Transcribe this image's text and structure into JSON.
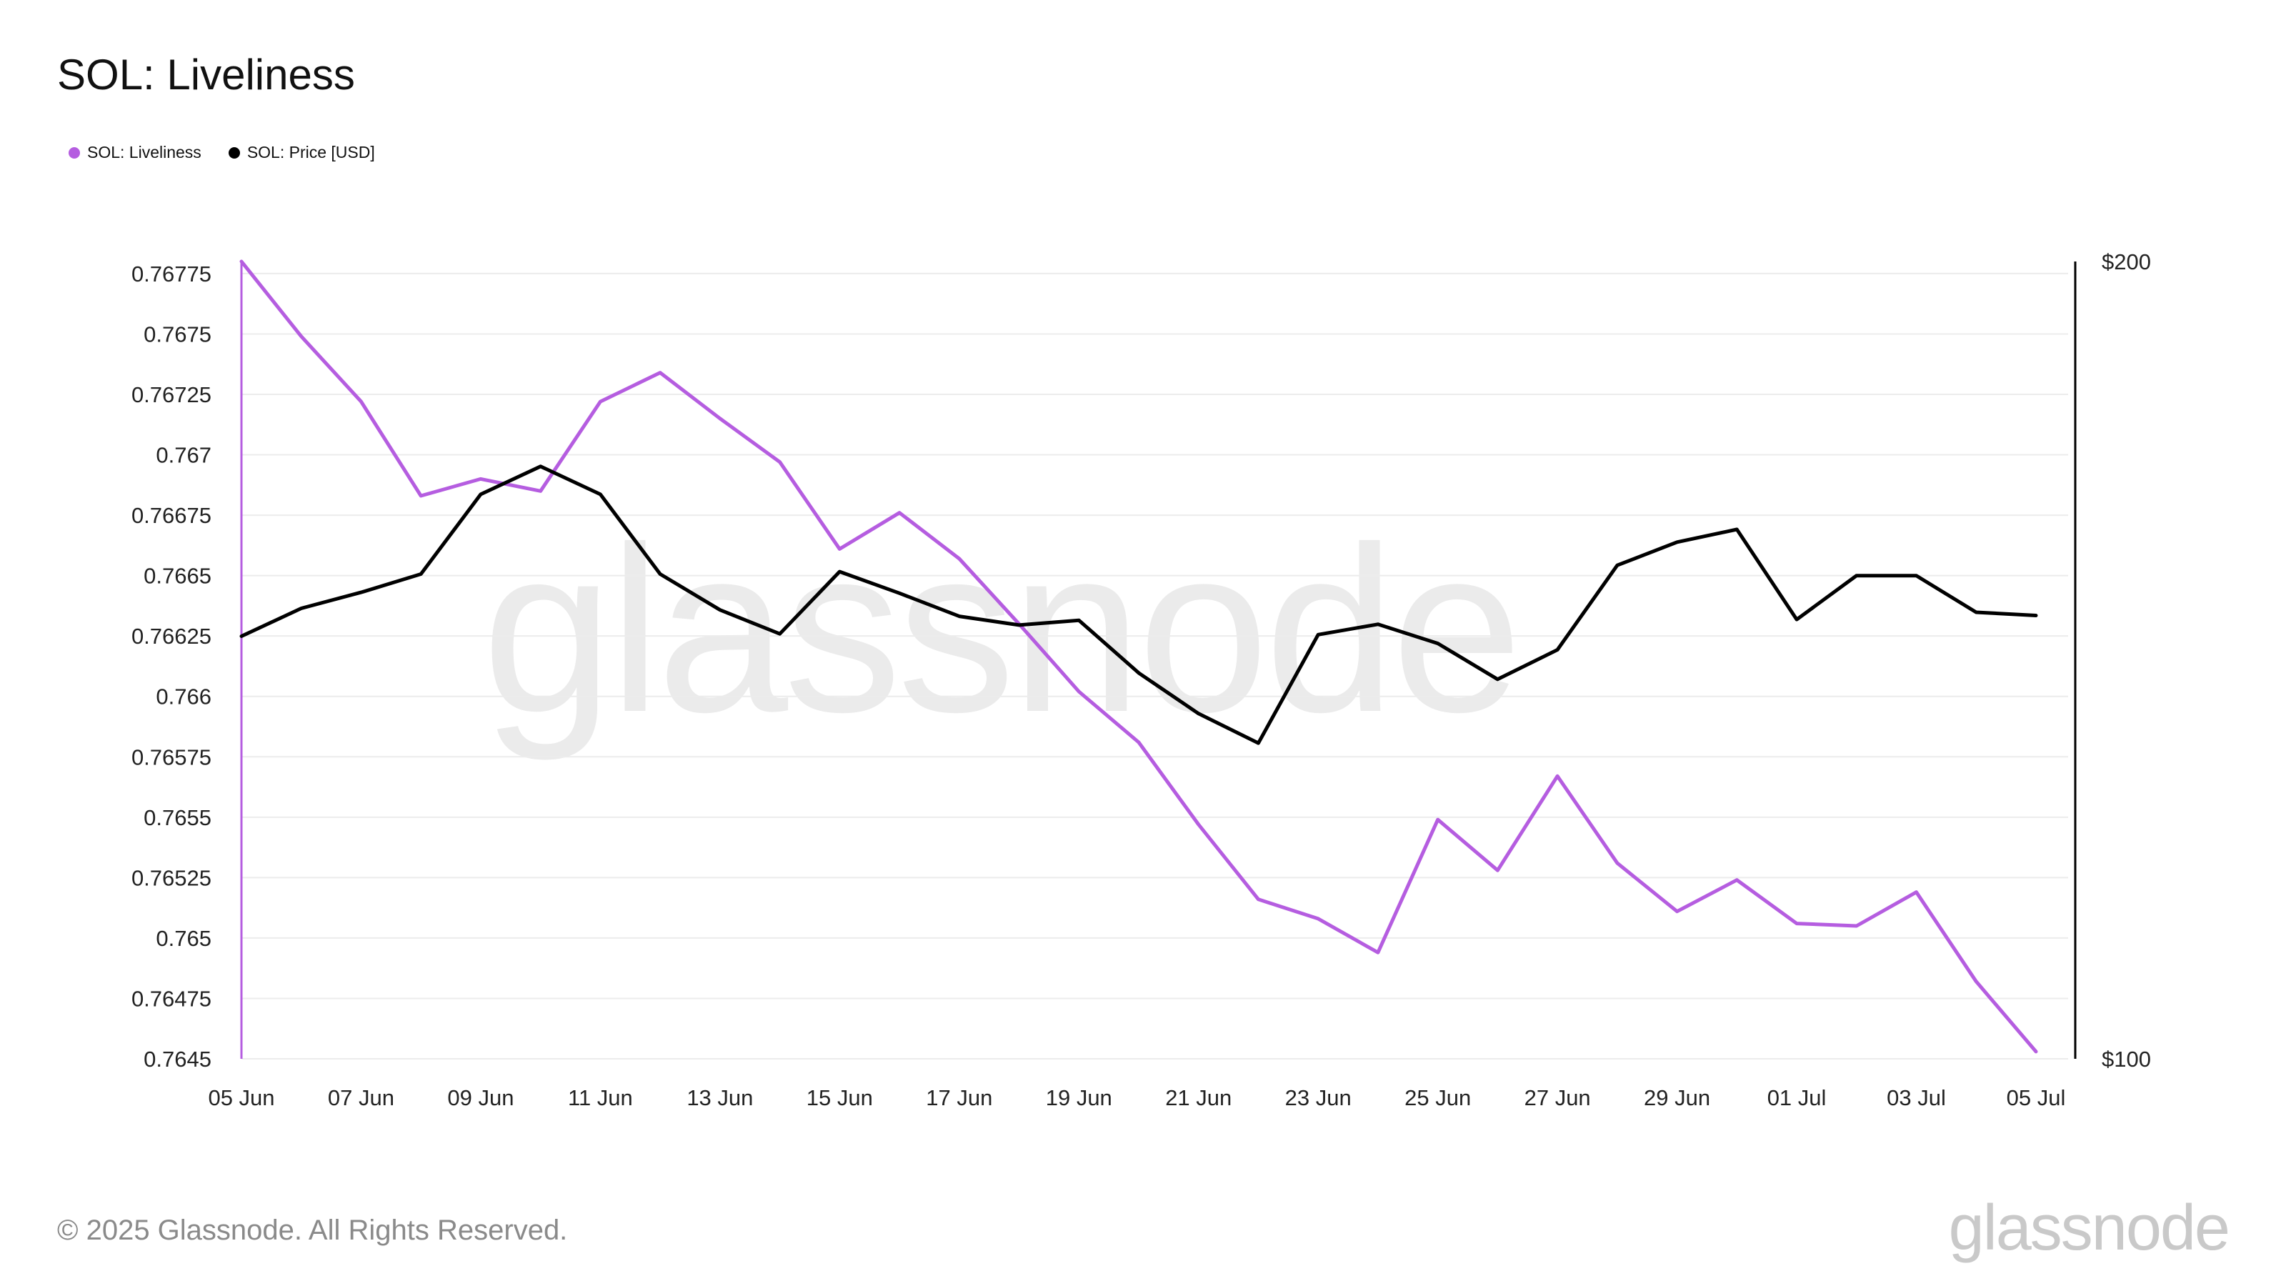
{
  "header": {
    "title": "SOL: Liveliness"
  },
  "legend": [
    {
      "label": "SOL: Liveliness",
      "color": "#b55de0"
    },
    {
      "label": "SOL: Price [USD]",
      "color": "#000000"
    }
  ],
  "watermark": "glassnode",
  "footer": {
    "copyright": "© 2025 Glassnode. All Rights Reserved.",
    "logo": "glassnode"
  },
  "chart_data": {
    "type": "line",
    "title": "SOL: Liveliness",
    "grid": true,
    "legend_position": "top-left",
    "x": [
      "05 Jun",
      "06 Jun",
      "07 Jun",
      "08 Jun",
      "09 Jun",
      "10 Jun",
      "11 Jun",
      "12 Jun",
      "13 Jun",
      "14 Jun",
      "15 Jun",
      "16 Jun",
      "17 Jun",
      "18 Jun",
      "19 Jun",
      "20 Jun",
      "21 Jun",
      "22 Jun",
      "23 Jun",
      "24 Jun",
      "25 Jun",
      "26 Jun",
      "27 Jun",
      "28 Jun",
      "29 Jun",
      "30 Jun",
      "01 Jul",
      "02 Jul",
      "03 Jul",
      "04 Jul",
      "05 Jul"
    ],
    "x_tick_labels": [
      "05 Jun",
      "07 Jun",
      "09 Jun",
      "11 Jun",
      "13 Jun",
      "15 Jun",
      "17 Jun",
      "19 Jun",
      "21 Jun",
      "23 Jun",
      "25 Jun",
      "27 Jun",
      "29 Jun",
      "01 Jul",
      "03 Jul",
      "05 Jul"
    ],
    "y_left": {
      "ylim": [
        0.7645,
        0.7678
      ],
      "tick_values": [
        0.7645,
        0.76475,
        0.765,
        0.76525,
        0.7655,
        0.76575,
        0.766,
        0.76625,
        0.7665,
        0.76675,
        0.767,
        0.76725,
        0.7675,
        0.76775
      ],
      "tick_labels": [
        "0.7645",
        "0.76475",
        "0.765",
        "0.76525",
        "0.7655",
        "0.76575",
        "0.766",
        "0.76625",
        "0.7665",
        "0.76675",
        "0.767",
        "0.76725",
        "0.7675",
        "0.76775"
      ]
    },
    "y_right": {
      "ylim": [
        100,
        200
      ],
      "tick_values": [
        100,
        200
      ],
      "tick_labels": [
        "$100",
        "$200"
      ]
    },
    "series": [
      {
        "name": "SOL: Liveliness",
        "axis": "left",
        "color": "#b55de0",
        "values": [
          0.7678,
          0.76749,
          0.76722,
          0.76683,
          0.7669,
          0.76685,
          0.76722,
          0.76734,
          0.76715,
          0.76697,
          0.76661,
          0.76676,
          0.76657,
          0.7663,
          0.76602,
          0.76581,
          0.76547,
          0.76516,
          0.76508,
          0.76494,
          0.76549,
          0.76528,
          0.76567,
          0.76531,
          0.76511,
          0.76524,
          0.76506,
          0.76505,
          0.76519,
          0.76482,
          0.76453
        ]
      },
      {
        "name": "SOL: Price [USD]",
        "axis": "right",
        "color": "#000000",
        "values": [
          153,
          156.5,
          158.5,
          160.8,
          170.8,
          174.3,
          170.8,
          160.8,
          156.3,
          153.3,
          161.1,
          158.4,
          155.5,
          154.4,
          155.0,
          148.4,
          143.3,
          139.6,
          153.2,
          154.5,
          152.1,
          147.6,
          151.3,
          161.9,
          164.8,
          166.4,
          155.1,
          160.6,
          160.6,
          156.0,
          155.6
        ]
      }
    ]
  }
}
